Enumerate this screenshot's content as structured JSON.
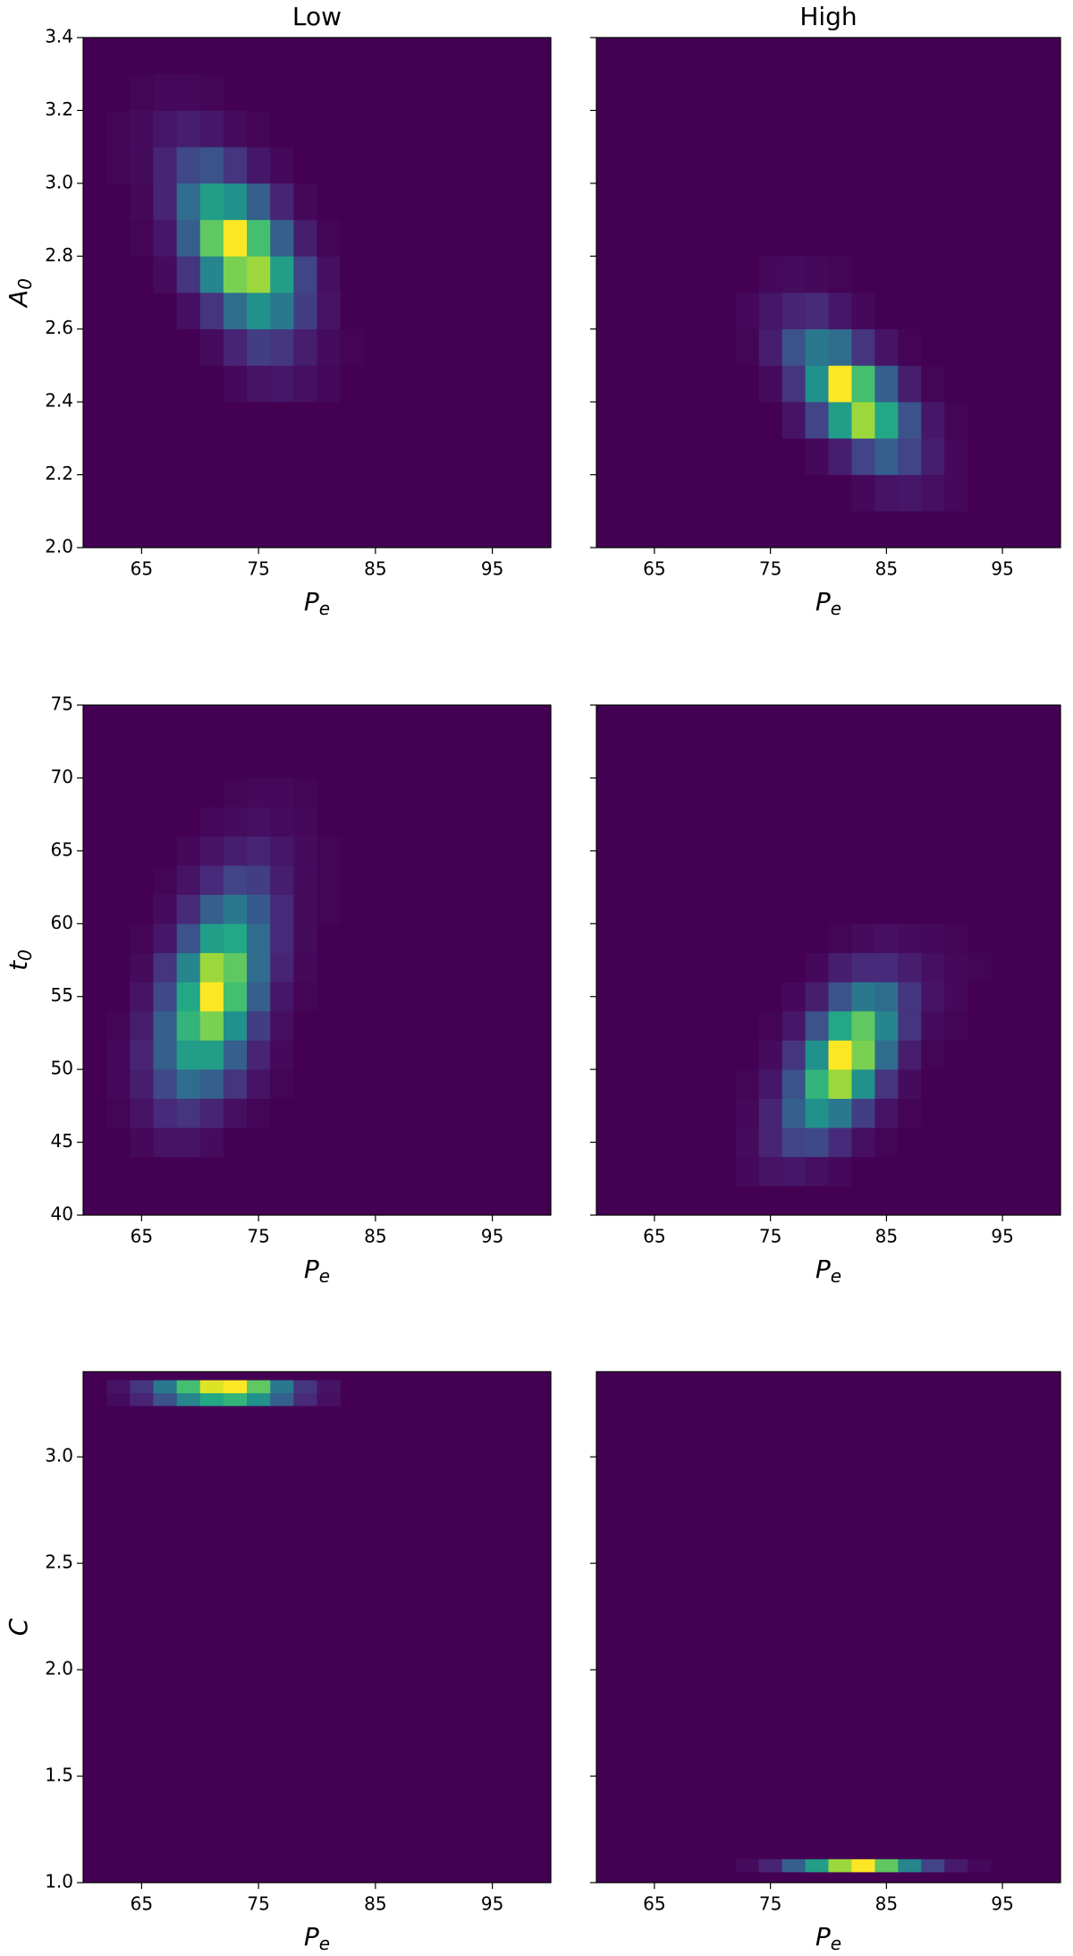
{
  "chart_data": [
    {
      "type": "heatmap",
      "title": "Low",
      "colormap": "viridis",
      "xlabel": "P",
      "xlabel_subscript": "e",
      "ylabel": "A",
      "ylabel_subscript": "0",
      "xlim": [
        60,
        100
      ],
      "xticks": [
        65,
        75,
        85,
        95
      ],
      "ylim": [
        2.0,
        3.4
      ],
      "yticks": [
        {
          "value": 2,
          "label": "2.0"
        },
        2.2,
        2.4,
        2.6,
        2.8,
        {
          "value": 3,
          "label": "3.0"
        },
        3.2,
        3.4
      ],
      "xbins": [
        62,
        64,
        66,
        68,
        70,
        72,
        74,
        76,
        78,
        80,
        82,
        84
      ],
      "ybins": [
        2.4,
        2.5,
        2.6,
        2.7,
        2.8,
        2.9,
        3.0,
        3.1,
        3.2,
        3.3
      ],
      "z": [
        [
          0,
          0,
          0,
          0,
          0,
          0.02,
          0.05,
          0.06,
          0.04,
          0.02,
          0
        ],
        [
          0,
          0,
          0,
          0,
          0.03,
          0.1,
          0.18,
          0.16,
          0.08,
          0.03,
          0.01
        ],
        [
          0,
          0,
          0,
          0.04,
          0.15,
          0.35,
          0.5,
          0.4,
          0.18,
          0.05,
          0
        ],
        [
          0,
          0,
          0.03,
          0.15,
          0.45,
          0.8,
          0.85,
          0.55,
          0.2,
          0.04,
          0
        ],
        [
          0,
          0.01,
          0.06,
          0.3,
          0.75,
          1.0,
          0.7,
          0.3,
          0.08,
          0.01,
          0
        ],
        [
          0,
          0.02,
          0.1,
          0.35,
          0.55,
          0.5,
          0.3,
          0.1,
          0.02,
          0,
          0
        ],
        [
          0.01,
          0.03,
          0.1,
          0.22,
          0.25,
          0.15,
          0.06,
          0.02,
          0,
          0,
          0
        ],
        [
          0.01,
          0.03,
          0.06,
          0.08,
          0.06,
          0.03,
          0.01,
          0,
          0,
          0,
          0
        ],
        [
          0,
          0.01,
          0.02,
          0.02,
          0.01,
          0,
          0,
          0,
          0,
          0,
          0
        ]
      ]
    },
    {
      "type": "heatmap",
      "title": "High",
      "colormap": "viridis",
      "xlabel": "P",
      "xlabel_subscript": "e",
      "xlim": [
        60,
        100
      ],
      "xticks": [
        65,
        75,
        85,
        95
      ],
      "ylim": [
        2.0,
        3.4
      ],
      "yticks": [
        2,
        2.2,
        2.4,
        2.6,
        2.8,
        3,
        3.2,
        3.4
      ],
      "show_yticklabels": false,
      "xbins": [
        72,
        74,
        76,
        78,
        80,
        82,
        84,
        86,
        88,
        90,
        92
      ],
      "ybins": [
        2.1,
        2.2,
        2.3,
        2.4,
        2.5,
        2.6,
        2.7,
        2.8
      ],
      "z": [
        [
          0,
          0,
          0,
          0,
          0,
          0.02,
          0.05,
          0.06,
          0.04,
          0.02
        ],
        [
          0,
          0,
          0,
          0.02,
          0.08,
          0.2,
          0.3,
          0.2,
          0.08,
          0.02
        ],
        [
          0,
          0,
          0.05,
          0.2,
          0.55,
          0.85,
          0.6,
          0.25,
          0.06,
          0.01
        ],
        [
          0,
          0.03,
          0.15,
          0.5,
          1.0,
          0.7,
          0.3,
          0.08,
          0.01,
          0
        ],
        [
          0.01,
          0.08,
          0.25,
          0.4,
          0.35,
          0.15,
          0.05,
          0.01,
          0,
          0
        ],
        [
          0.02,
          0.06,
          0.1,
          0.12,
          0.06,
          0.02,
          0,
          0,
          0,
          0
        ],
        [
          0,
          0.02,
          0.03,
          0.02,
          0.01,
          0,
          0,
          0,
          0,
          0
        ]
      ]
    },
    {
      "type": "heatmap",
      "colormap": "viridis",
      "xlabel": "P",
      "xlabel_subscript": "e",
      "ylabel": "t",
      "ylabel_subscript": "0",
      "xlim": [
        60,
        100
      ],
      "xticks": [
        65,
        75,
        85,
        95
      ],
      "ylim": [
        40,
        75
      ],
      "yticks": [
        40,
        45,
        50,
        55,
        60,
        65,
        70,
        75
      ],
      "xbins": [
        62,
        64,
        66,
        68,
        70,
        72,
        74,
        76,
        78,
        80,
        82,
        84
      ],
      "ybins": [
        44,
        46,
        48,
        50,
        52,
        54,
        56,
        58,
        60,
        62,
        64,
        66,
        68,
        70
      ],
      "z": [
        [
          0,
          0.02,
          0.05,
          0.05,
          0.03,
          0,
          0,
          0,
          0,
          0,
          0
        ],
        [
          0.01,
          0.05,
          0.12,
          0.15,
          0.1,
          0.04,
          0.01,
          0,
          0,
          0,
          0
        ],
        [
          0.02,
          0.08,
          0.22,
          0.35,
          0.3,
          0.15,
          0.05,
          0.01,
          0,
          0,
          0
        ],
        [
          0.02,
          0.1,
          0.3,
          0.55,
          0.55,
          0.3,
          0.1,
          0.02,
          0,
          0,
          0
        ],
        [
          0.01,
          0.08,
          0.3,
          0.65,
          0.8,
          0.5,
          0.18,
          0.04,
          0,
          0,
          0
        ],
        [
          0,
          0.05,
          0.22,
          0.6,
          1.0,
          0.7,
          0.3,
          0.06,
          0.01,
          0,
          0
        ],
        [
          0,
          0.03,
          0.15,
          0.45,
          0.85,
          0.75,
          0.35,
          0.1,
          0.02,
          0,
          0
        ],
        [
          0,
          0.01,
          0.06,
          0.25,
          0.55,
          0.6,
          0.35,
          0.12,
          0.03,
          0,
          0
        ],
        [
          0,
          0,
          0.03,
          0.12,
          0.3,
          0.4,
          0.28,
          0.12,
          0.03,
          0.01,
          0
        ],
        [
          0,
          0,
          0.01,
          0.05,
          0.12,
          0.2,
          0.18,
          0.08,
          0.03,
          0.01,
          0
        ],
        [
          0,
          0,
          0,
          0.02,
          0.05,
          0.08,
          0.1,
          0.06,
          0.03,
          0.01,
          0
        ],
        [
          0,
          0,
          0,
          0,
          0.02,
          0.03,
          0.04,
          0.03,
          0.02,
          0,
          0
        ],
        [
          0,
          0,
          0,
          0,
          0,
          0.01,
          0.02,
          0.02,
          0.01,
          0,
          0
        ]
      ]
    },
    {
      "type": "heatmap",
      "colormap": "viridis",
      "xlabel": "P",
      "xlabel_subscript": "e",
      "xlim": [
        60,
        100
      ],
      "xticks": [
        65,
        75,
        85,
        95
      ],
      "ylim": [
        40,
        75
      ],
      "yticks": [
        40,
        45,
        50,
        55,
        60,
        65,
        70,
        75
      ],
      "show_yticklabels": false,
      "xbins": [
        72,
        74,
        76,
        78,
        80,
        82,
        84,
        86,
        88,
        90,
        92,
        94
      ],
      "ybins": [
        42,
        44,
        46,
        48,
        50,
        52,
        54,
        56,
        58,
        60
      ],
      "z": [
        [
          0.02,
          0.05,
          0.06,
          0.04,
          0.02,
          0,
          0,
          0,
          0,
          0,
          0
        ],
        [
          0.03,
          0.1,
          0.2,
          0.22,
          0.12,
          0.04,
          0.01,
          0,
          0,
          0,
          0
        ],
        [
          0.02,
          0.1,
          0.3,
          0.5,
          0.4,
          0.18,
          0.05,
          0.01,
          0,
          0,
          0
        ],
        [
          0.01,
          0.06,
          0.25,
          0.65,
          0.85,
          0.5,
          0.15,
          0.03,
          0,
          0,
          0
        ],
        [
          0,
          0.03,
          0.15,
          0.5,
          1.0,
          0.8,
          0.35,
          0.08,
          0.01,
          0,
          0
        ],
        [
          0,
          0.01,
          0.06,
          0.25,
          0.6,
          0.75,
          0.45,
          0.15,
          0.03,
          0.01,
          0
        ],
        [
          0,
          0,
          0.02,
          0.08,
          0.25,
          0.4,
          0.35,
          0.15,
          0.05,
          0.02,
          0
        ],
        [
          0,
          0,
          0,
          0.02,
          0.08,
          0.12,
          0.12,
          0.08,
          0.04,
          0.02,
          0.01
        ],
        [
          0,
          0,
          0,
          0,
          0.01,
          0.03,
          0.04,
          0.03,
          0.02,
          0.01,
          0
        ]
      ]
    },
    {
      "type": "heatmap",
      "colormap": "viridis",
      "xlabel": "P",
      "xlabel_subscript": "e",
      "ylabel": "C",
      "xlim": [
        60,
        100
      ],
      "xticks": [
        65,
        75,
        85,
        95
      ],
      "ylim": [
        1.0,
        3.4
      ],
      "yticks": [
        {
          "value": 1,
          "label": "1.0"
        },
        1.5,
        {
          "value": 2,
          "label": "2.0"
        },
        2.5,
        {
          "value": 3,
          "label": "3.0"
        }
      ],
      "xbins": [
        62,
        64,
        66,
        68,
        70,
        72,
        74,
        76,
        78,
        80,
        82
      ],
      "ybins": [
        3.24,
        3.3,
        3.36
      ],
      "z": [
        [
          0.03,
          0.1,
          0.25,
          0.45,
          0.6,
          0.65,
          0.5,
          0.3,
          0.12,
          0.04
        ],
        [
          0.05,
          0.15,
          0.4,
          0.7,
          0.95,
          1.0,
          0.75,
          0.4,
          0.15,
          0.05
        ]
      ]
    },
    {
      "type": "heatmap",
      "colormap": "viridis",
      "xlabel": "P",
      "xlabel_subscript": "e",
      "xlim": [
        60,
        100
      ],
      "xticks": [
        65,
        75,
        85,
        95
      ],
      "ylim": [
        1.0,
        3.4
      ],
      "yticks": [
        1,
        1.5,
        2,
        2.5,
        3
      ],
      "show_yticklabels": false,
      "xbins": [
        72,
        74,
        76,
        78,
        80,
        82,
        84,
        86,
        88,
        90,
        92,
        94
      ],
      "ybins": [
        1.05,
        1.11
      ],
      "z": [
        [
          0.03,
          0.1,
          0.3,
          0.55,
          0.85,
          1.0,
          0.75,
          0.45,
          0.2,
          0.07,
          0.02
        ]
      ]
    }
  ]
}
